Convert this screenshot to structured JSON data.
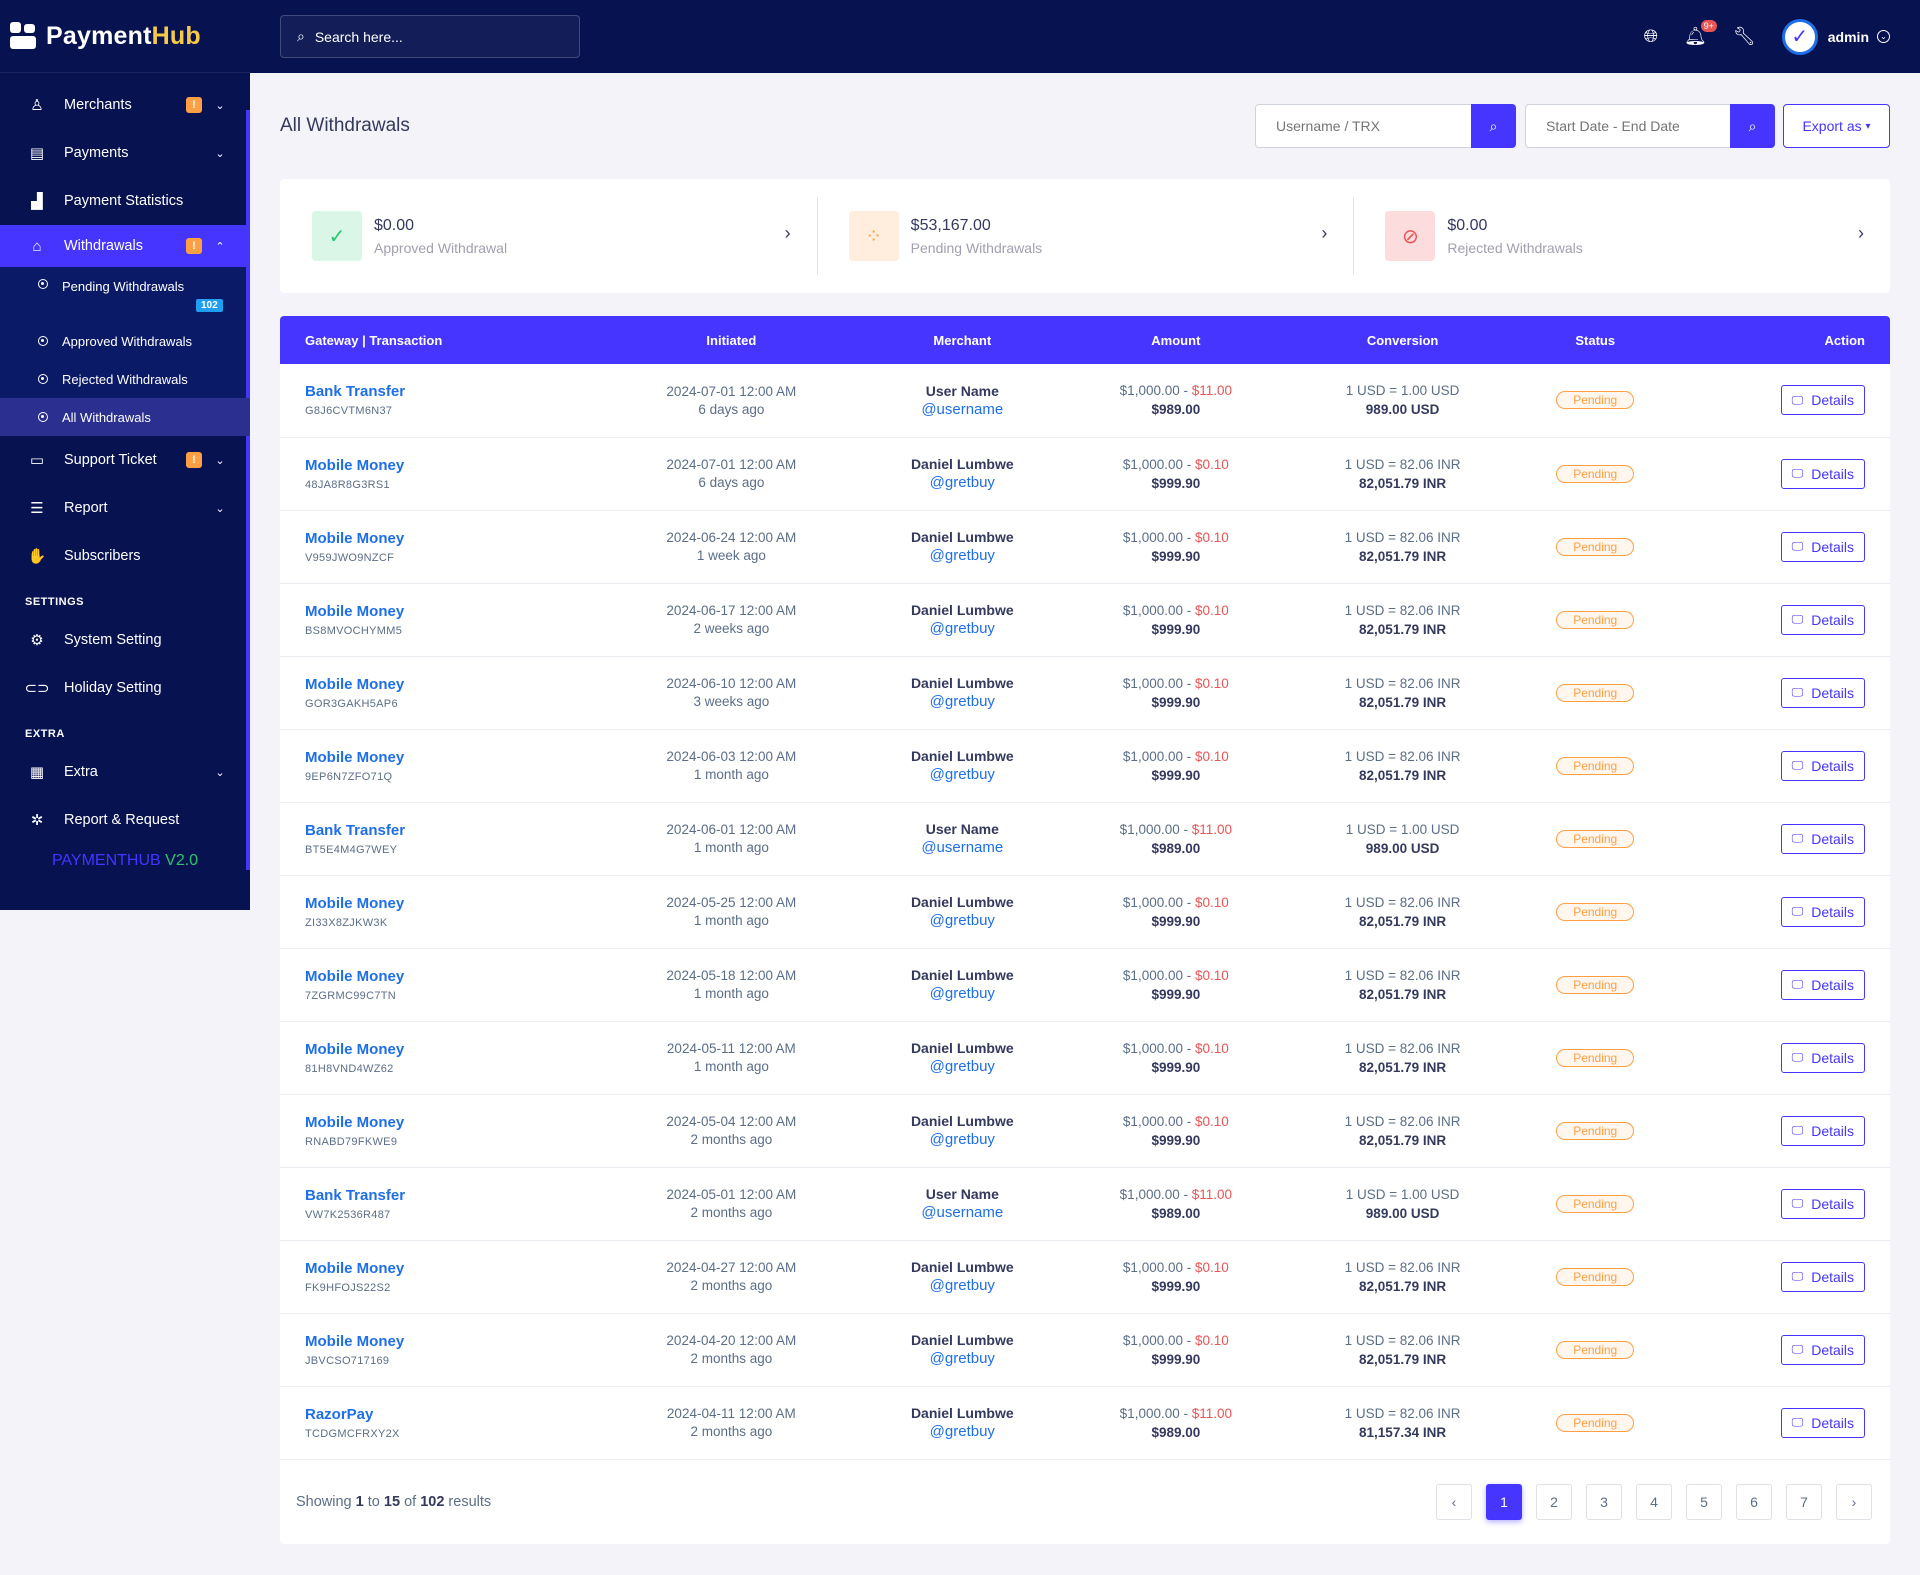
{
  "brand": {
    "name_main": "Payment",
    "name_accent": "Hub"
  },
  "header": {
    "search_placeholder": "Search here...",
    "notif_count": "9+",
    "admin_name": "admin"
  },
  "sidebar": {
    "items": [
      {
        "label": "Merchants",
        "warn": "!"
      },
      {
        "label": "Payments"
      },
      {
        "label": "Payment Statistics"
      },
      {
        "label": "Withdrawals",
        "warn": "!"
      }
    ],
    "withdraw_sub": [
      {
        "label": "Pending Withdrawals",
        "count": "102"
      },
      {
        "label": "Approved Withdrawals"
      },
      {
        "label": "Rejected Withdrawals"
      },
      {
        "label": "All Withdrawals"
      }
    ],
    "items2": [
      {
        "label": "Support Ticket",
        "warn": "!"
      },
      {
        "label": "Report"
      },
      {
        "label": "Subscribers"
      }
    ],
    "settings_title": "SETTINGS",
    "settings": [
      {
        "label": "System Setting"
      },
      {
        "label": "Holiday Setting"
      }
    ],
    "extra_title": "EXTRA",
    "extra": [
      {
        "label": "Extra"
      },
      {
        "label": "Report & Request"
      }
    ],
    "version_name": "PAYMENTHUB",
    "version_num": "V2.0"
  },
  "page": {
    "title": "All Withdrawals",
    "search_placeholder": "Username / TRX",
    "date_placeholder": "Start Date - End Date",
    "export_label": "Export as"
  },
  "widgets": [
    {
      "amount": "$0.00",
      "label": "Approved Withdrawal"
    },
    {
      "amount": "$53,167.00",
      "label": "Pending Withdrawals"
    },
    {
      "amount": "$0.00",
      "label": "Rejected Withdrawals"
    }
  ],
  "table": {
    "headers": [
      "Gateway | Transaction",
      "Initiated",
      "Merchant",
      "Amount",
      "Conversion",
      "Status",
      "Action"
    ],
    "status_label": "Pending",
    "action_label": "Details",
    "rows": [
      {
        "gateway": "Bank Transfer",
        "trx": "G8J6CVTM6N37",
        "date": "2024-07-01 12:00 AM",
        "ago": "6 days ago",
        "name": "User Name",
        "user": "@username",
        "amount": "$1,000.00 - ",
        "charge": "$11.00",
        "final": "$989.00",
        "rate": "1 USD = 1.00 USD",
        "converted": "989.00 USD"
      },
      {
        "gateway": "Mobile Money",
        "trx": "48JA8R8G3RS1",
        "date": "2024-07-01 12:00 AM",
        "ago": "6 days ago",
        "name": "Daniel Lumbwe",
        "user": "@gretbuy",
        "amount": "$1,000.00 - ",
        "charge": "$0.10",
        "final": "$999.90",
        "rate": "1 USD = 82.06 INR",
        "converted": "82,051.79 INR"
      },
      {
        "gateway": "Mobile Money",
        "trx": "V959JWO9NZCF",
        "date": "2024-06-24 12:00 AM",
        "ago": "1 week ago",
        "name": "Daniel Lumbwe",
        "user": "@gretbuy",
        "amount": "$1,000.00 - ",
        "charge": "$0.10",
        "final": "$999.90",
        "rate": "1 USD = 82.06 INR",
        "converted": "82,051.79 INR"
      },
      {
        "gateway": "Mobile Money",
        "trx": "BS8MVOCHYMM5",
        "date": "2024-06-17 12:00 AM",
        "ago": "2 weeks ago",
        "name": "Daniel Lumbwe",
        "user": "@gretbuy",
        "amount": "$1,000.00 - ",
        "charge": "$0.10",
        "final": "$999.90",
        "rate": "1 USD = 82.06 INR",
        "converted": "82,051.79 INR"
      },
      {
        "gateway": "Mobile Money",
        "trx": "GOR3GAKH5AP6",
        "date": "2024-06-10 12:00 AM",
        "ago": "3 weeks ago",
        "name": "Daniel Lumbwe",
        "user": "@gretbuy",
        "amount": "$1,000.00 - ",
        "charge": "$0.10",
        "final": "$999.90",
        "rate": "1 USD = 82.06 INR",
        "converted": "82,051.79 INR"
      },
      {
        "gateway": "Mobile Money",
        "trx": "9EP6N7ZFO71Q",
        "date": "2024-06-03 12:00 AM",
        "ago": "1 month ago",
        "name": "Daniel Lumbwe",
        "user": "@gretbuy",
        "amount": "$1,000.00 - ",
        "charge": "$0.10",
        "final": "$999.90",
        "rate": "1 USD = 82.06 INR",
        "converted": "82,051.79 INR"
      },
      {
        "gateway": "Bank Transfer",
        "trx": "BT5E4M4G7WEY",
        "date": "2024-06-01 12:00 AM",
        "ago": "1 month ago",
        "name": "User Name",
        "user": "@username",
        "amount": "$1,000.00 - ",
        "charge": "$11.00",
        "final": "$989.00",
        "rate": "1 USD = 1.00 USD",
        "converted": "989.00 USD"
      },
      {
        "gateway": "Mobile Money",
        "trx": "ZI33X8ZJKW3K",
        "date": "2024-05-25 12:00 AM",
        "ago": "1 month ago",
        "name": "Daniel Lumbwe",
        "user": "@gretbuy",
        "amount": "$1,000.00 - ",
        "charge": "$0.10",
        "final": "$999.90",
        "rate": "1 USD = 82.06 INR",
        "converted": "82,051.79 INR"
      },
      {
        "gateway": "Mobile Money",
        "trx": "7ZGRMC99C7TN",
        "date": "2024-05-18 12:00 AM",
        "ago": "1 month ago",
        "name": "Daniel Lumbwe",
        "user": "@gretbuy",
        "amount": "$1,000.00 - ",
        "charge": "$0.10",
        "final": "$999.90",
        "rate": "1 USD = 82.06 INR",
        "converted": "82,051.79 INR"
      },
      {
        "gateway": "Mobile Money",
        "trx": "81H8VND4WZ62",
        "date": "2024-05-11 12:00 AM",
        "ago": "1 month ago",
        "name": "Daniel Lumbwe",
        "user": "@gretbuy",
        "amount": "$1,000.00 - ",
        "charge": "$0.10",
        "final": "$999.90",
        "rate": "1 USD = 82.06 INR",
        "converted": "82,051.79 INR"
      },
      {
        "gateway": "Mobile Money",
        "trx": "RNABD79FKWE9",
        "date": "2024-05-04 12:00 AM",
        "ago": "2 months ago",
        "name": "Daniel Lumbwe",
        "user": "@gretbuy",
        "amount": "$1,000.00 - ",
        "charge": "$0.10",
        "final": "$999.90",
        "rate": "1 USD = 82.06 INR",
        "converted": "82,051.79 INR"
      },
      {
        "gateway": "Bank Transfer",
        "trx": "VW7K2536R487",
        "date": "2024-05-01 12:00 AM",
        "ago": "2 months ago",
        "name": "User Name",
        "user": "@username",
        "amount": "$1,000.00 - ",
        "charge": "$11.00",
        "final": "$989.00",
        "rate": "1 USD = 1.00 USD",
        "converted": "989.00 USD"
      },
      {
        "gateway": "Mobile Money",
        "trx": "FK9HFOJS22S2",
        "date": "2024-04-27 12:00 AM",
        "ago": "2 months ago",
        "name": "Daniel Lumbwe",
        "user": "@gretbuy",
        "amount": "$1,000.00 - ",
        "charge": "$0.10",
        "final": "$999.90",
        "rate": "1 USD = 82.06 INR",
        "converted": "82,051.79 INR"
      },
      {
        "gateway": "Mobile Money",
        "trx": "JBVCSO717169",
        "date": "2024-04-20 12:00 AM",
        "ago": "2 months ago",
        "name": "Daniel Lumbwe",
        "user": "@gretbuy",
        "amount": "$1,000.00 - ",
        "charge": "$0.10",
        "final": "$999.90",
        "rate": "1 USD = 82.06 INR",
        "converted": "82,051.79 INR"
      },
      {
        "gateway": "RazorPay",
        "trx": "TCDGMCFRXY2X",
        "date": "2024-04-11 12:00 AM",
        "ago": "2 months ago",
        "name": "Daniel Lumbwe",
        "user": "@gretbuy",
        "amount": "$1,000.00 - ",
        "charge": "$11.00",
        "final": "$989.00",
        "rate": "1 USD = 82.06 INR",
        "converted": "81,157.34 INR"
      }
    ]
  },
  "footer": {
    "showing_prefix": "Showing",
    "from": "1",
    "to_word": "to",
    "to": "15",
    "of_word": "of",
    "total": "102",
    "results_word": "results"
  },
  "pagination": {
    "prev": "‹",
    "pages": [
      "1",
      "2",
      "3",
      "4",
      "5",
      "6",
      "7"
    ],
    "next": "›",
    "active": "1"
  },
  "colors": {
    "primary": "#4634ff",
    "sidebar": "#071251",
    "pending": "#ff9f43",
    "danger": "#ea5455",
    "link": "#1e6fe8"
  }
}
